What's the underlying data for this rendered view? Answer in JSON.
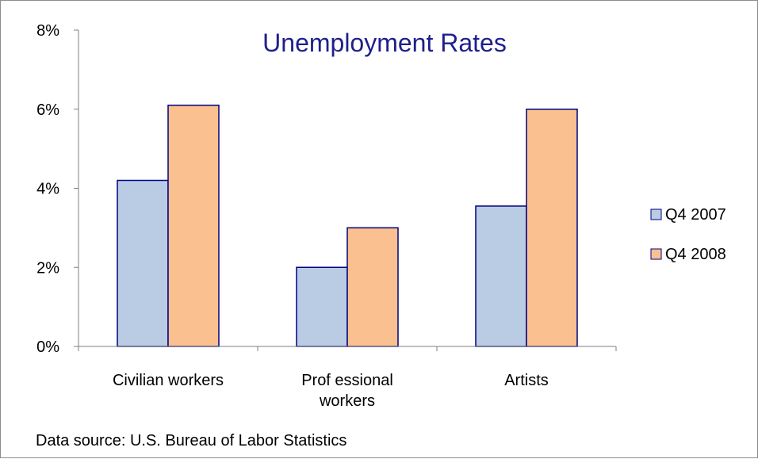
{
  "chart_data": {
    "type": "bar",
    "title": "Unemployment Rates",
    "categories": [
      [
        "Civilian workers"
      ],
      [
        "Prof essional",
        "workers"
      ],
      [
        "Artists"
      ]
    ],
    "series": [
      {
        "name": "Q4 2007",
        "values": [
          4.2,
          2.0,
          3.55
        ],
        "color": "#b9cce4"
      },
      {
        "name": "Q4 2008",
        "values": [
          6.1,
          3.0,
          6.0
        ],
        "color": "#fac090"
      }
    ],
    "ylim": [
      0,
      8
    ],
    "yticks": [
      0,
      2,
      4,
      6,
      8
    ],
    "ytick_labels": [
      "0%",
      "2%",
      "4%",
      "6%",
      "8%"
    ],
    "legend_position": "right",
    "grid": false,
    "bar_outline_color": "#000080"
  },
  "source_note": "Data source: U.S. Bureau of Labor Statistics"
}
